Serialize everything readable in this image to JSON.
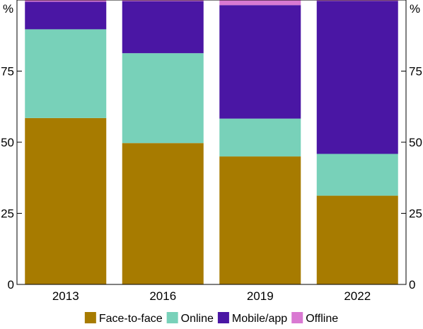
{
  "chart_data": {
    "type": "bar",
    "stacked": true,
    "categories": [
      "2013",
      "2016",
      "2019",
      "2022"
    ],
    "series": [
      {
        "name": "Face-to-face",
        "color": "#a77b00",
        "values": [
          58.5,
          49.7,
          45.0,
          31.2
        ]
      },
      {
        "name": "Online",
        "color": "#78d1b9",
        "values": [
          31.2,
          31.6,
          13.3,
          14.7
        ]
      },
      {
        "name": "Mobile/app",
        "color": "#4a16a4",
        "values": [
          9.7,
          18.3,
          39.9,
          53.8
        ]
      },
      {
        "name": "Offline",
        "color": "#d979d2",
        "values": [
          0.6,
          0.4,
          1.8,
          0.3
        ]
      }
    ],
    "ylim": [
      0,
      100
    ],
    "yticks": [
      0,
      25,
      50,
      75
    ],
    "left_unit": "%",
    "right_unit": "%",
    "legend_position": "bottom",
    "grid": false
  }
}
